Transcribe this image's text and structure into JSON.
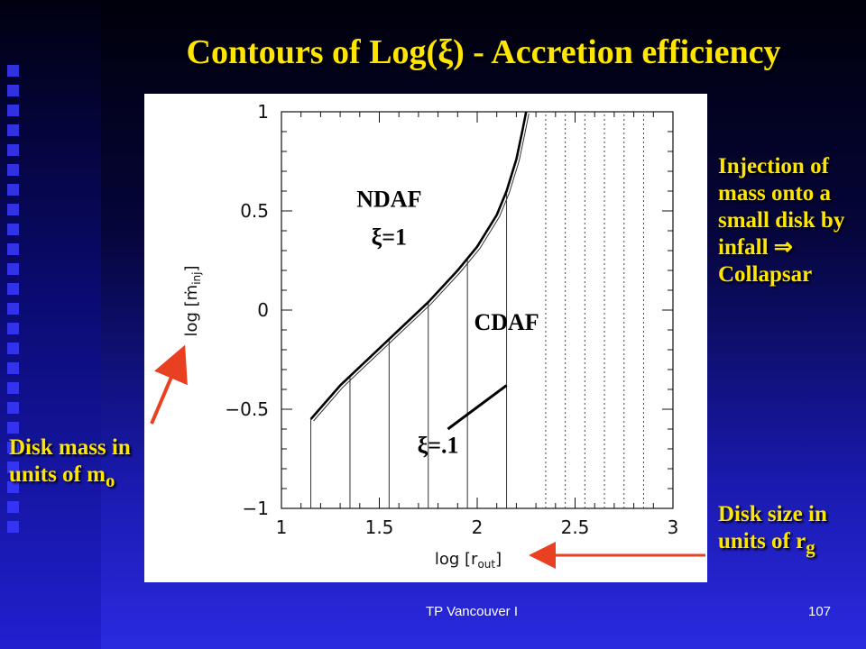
{
  "slide": {
    "title": "Contours of Log(ξ)  - Accretion efficiency",
    "footer_center": "TP Vancouver I",
    "slide_number": "107",
    "note_left": "Disk mass in units of m",
    "note_left_sub": "o",
    "note_right_top": "Injection of mass onto a small disk by infall ⇒ Collapsar",
    "note_right_bottom": "Disk size in units of r",
    "note_right_bottom_sub": "g",
    "accent_color": "#ffe600",
    "arrow_color": "#e84020"
  },
  "chart_data": {
    "type": "line",
    "title": "",
    "xlabel": "log [r",
    "xlabel_sub": "out",
    "ylabel": "log [ṁ",
    "ylabel_sub": "inj",
    "xlim": [
      1,
      3
    ],
    "ylim": [
      -1,
      1
    ],
    "x_ticks": [
      1,
      1.5,
      2,
      2.5,
      3
    ],
    "x_tick_labels": [
      "1",
      "1.5",
      "2",
      "2.5",
      "3"
    ],
    "y_ticks": [
      -1,
      -0.5,
      0,
      0.5,
      1
    ],
    "y_tick_labels": [
      "−1",
      "−0.5",
      "0",
      "0.5",
      "1"
    ],
    "boundary": {
      "x": [
        1.15,
        1.3,
        1.45,
        1.6,
        1.75,
        1.9,
        2.0,
        2.1,
        2.15,
        2.2,
        2.23,
        2.25
      ],
      "y": [
        -0.55,
        -0.38,
        -0.24,
        -0.1,
        0.04,
        0.2,
        0.32,
        0.48,
        0.6,
        0.76,
        0.9,
        1.0
      ]
    },
    "solid_contours_x": [
      1.15,
      1.35,
      1.55,
      1.75,
      1.95,
      2.15
    ],
    "dotted_contours_x": [
      2.35,
      2.45,
      2.55,
      2.65,
      2.75,
      2.85
    ],
    "annotations": [
      {
        "text": "NDAF",
        "x": 1.55,
        "y": 0.52
      },
      {
        "text": "ξ=1",
        "x": 1.55,
        "y": 0.33
      },
      {
        "text": "CDAF",
        "x": 2.15,
        "y": -0.1
      },
      {
        "text": "ξ=.1",
        "x": 1.8,
        "y": -0.72
      }
    ]
  }
}
